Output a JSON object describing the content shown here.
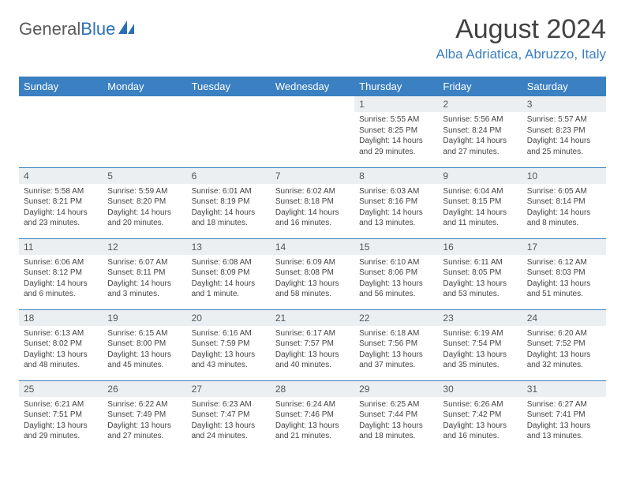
{
  "logo": {
    "text_gray": "General",
    "text_blue": "Blue"
  },
  "title": "August 2024",
  "location": "Alba Adriatica, Abruzzo, Italy",
  "colors": {
    "header_blue": "#3a80c2",
    "daynum_bg": "#eceff1",
    "text": "#444444",
    "title_text": "#424242"
  },
  "dayNames": [
    "Sunday",
    "Monday",
    "Tuesday",
    "Wednesday",
    "Thursday",
    "Friday",
    "Saturday"
  ],
  "weeks": [
    [
      {
        "empty": true
      },
      {
        "empty": true
      },
      {
        "empty": true
      },
      {
        "empty": true
      },
      {
        "num": "1",
        "sunrise": "Sunrise: 5:55 AM",
        "sunset": "Sunset: 8:25 PM",
        "daylight": "Daylight: 14 hours and 29 minutes."
      },
      {
        "num": "2",
        "sunrise": "Sunrise: 5:56 AM",
        "sunset": "Sunset: 8:24 PM",
        "daylight": "Daylight: 14 hours and 27 minutes."
      },
      {
        "num": "3",
        "sunrise": "Sunrise: 5:57 AM",
        "sunset": "Sunset: 8:23 PM",
        "daylight": "Daylight: 14 hours and 25 minutes."
      }
    ],
    [
      {
        "num": "4",
        "sunrise": "Sunrise: 5:58 AM",
        "sunset": "Sunset: 8:21 PM",
        "daylight": "Daylight: 14 hours and 23 minutes."
      },
      {
        "num": "5",
        "sunrise": "Sunrise: 5:59 AM",
        "sunset": "Sunset: 8:20 PM",
        "daylight": "Daylight: 14 hours and 20 minutes."
      },
      {
        "num": "6",
        "sunrise": "Sunrise: 6:01 AM",
        "sunset": "Sunset: 8:19 PM",
        "daylight": "Daylight: 14 hours and 18 minutes."
      },
      {
        "num": "7",
        "sunrise": "Sunrise: 6:02 AM",
        "sunset": "Sunset: 8:18 PM",
        "daylight": "Daylight: 14 hours and 16 minutes."
      },
      {
        "num": "8",
        "sunrise": "Sunrise: 6:03 AM",
        "sunset": "Sunset: 8:16 PM",
        "daylight": "Daylight: 14 hours and 13 minutes."
      },
      {
        "num": "9",
        "sunrise": "Sunrise: 6:04 AM",
        "sunset": "Sunset: 8:15 PM",
        "daylight": "Daylight: 14 hours and 11 minutes."
      },
      {
        "num": "10",
        "sunrise": "Sunrise: 6:05 AM",
        "sunset": "Sunset: 8:14 PM",
        "daylight": "Daylight: 14 hours and 8 minutes."
      }
    ],
    [
      {
        "num": "11",
        "sunrise": "Sunrise: 6:06 AM",
        "sunset": "Sunset: 8:12 PM",
        "daylight": "Daylight: 14 hours and 6 minutes."
      },
      {
        "num": "12",
        "sunrise": "Sunrise: 6:07 AM",
        "sunset": "Sunset: 8:11 PM",
        "daylight": "Daylight: 14 hours and 3 minutes."
      },
      {
        "num": "13",
        "sunrise": "Sunrise: 6:08 AM",
        "sunset": "Sunset: 8:09 PM",
        "daylight": "Daylight: 14 hours and 1 minute."
      },
      {
        "num": "14",
        "sunrise": "Sunrise: 6:09 AM",
        "sunset": "Sunset: 8:08 PM",
        "daylight": "Daylight: 13 hours and 58 minutes."
      },
      {
        "num": "15",
        "sunrise": "Sunrise: 6:10 AM",
        "sunset": "Sunset: 8:06 PM",
        "daylight": "Daylight: 13 hours and 56 minutes."
      },
      {
        "num": "16",
        "sunrise": "Sunrise: 6:11 AM",
        "sunset": "Sunset: 8:05 PM",
        "daylight": "Daylight: 13 hours and 53 minutes."
      },
      {
        "num": "17",
        "sunrise": "Sunrise: 6:12 AM",
        "sunset": "Sunset: 8:03 PM",
        "daylight": "Daylight: 13 hours and 51 minutes."
      }
    ],
    [
      {
        "num": "18",
        "sunrise": "Sunrise: 6:13 AM",
        "sunset": "Sunset: 8:02 PM",
        "daylight": "Daylight: 13 hours and 48 minutes."
      },
      {
        "num": "19",
        "sunrise": "Sunrise: 6:15 AM",
        "sunset": "Sunset: 8:00 PM",
        "daylight": "Daylight: 13 hours and 45 minutes."
      },
      {
        "num": "20",
        "sunrise": "Sunrise: 6:16 AM",
        "sunset": "Sunset: 7:59 PM",
        "daylight": "Daylight: 13 hours and 43 minutes."
      },
      {
        "num": "21",
        "sunrise": "Sunrise: 6:17 AM",
        "sunset": "Sunset: 7:57 PM",
        "daylight": "Daylight: 13 hours and 40 minutes."
      },
      {
        "num": "22",
        "sunrise": "Sunrise: 6:18 AM",
        "sunset": "Sunset: 7:56 PM",
        "daylight": "Daylight: 13 hours and 37 minutes."
      },
      {
        "num": "23",
        "sunrise": "Sunrise: 6:19 AM",
        "sunset": "Sunset: 7:54 PM",
        "daylight": "Daylight: 13 hours and 35 minutes."
      },
      {
        "num": "24",
        "sunrise": "Sunrise: 6:20 AM",
        "sunset": "Sunset: 7:52 PM",
        "daylight": "Daylight: 13 hours and 32 minutes."
      }
    ],
    [
      {
        "num": "25",
        "sunrise": "Sunrise: 6:21 AM",
        "sunset": "Sunset: 7:51 PM",
        "daylight": "Daylight: 13 hours and 29 minutes."
      },
      {
        "num": "26",
        "sunrise": "Sunrise: 6:22 AM",
        "sunset": "Sunset: 7:49 PM",
        "daylight": "Daylight: 13 hours and 27 minutes."
      },
      {
        "num": "27",
        "sunrise": "Sunrise: 6:23 AM",
        "sunset": "Sunset: 7:47 PM",
        "daylight": "Daylight: 13 hours and 24 minutes."
      },
      {
        "num": "28",
        "sunrise": "Sunrise: 6:24 AM",
        "sunset": "Sunset: 7:46 PM",
        "daylight": "Daylight: 13 hours and 21 minutes."
      },
      {
        "num": "29",
        "sunrise": "Sunrise: 6:25 AM",
        "sunset": "Sunset: 7:44 PM",
        "daylight": "Daylight: 13 hours and 18 minutes."
      },
      {
        "num": "30",
        "sunrise": "Sunrise: 6:26 AM",
        "sunset": "Sunset: 7:42 PM",
        "daylight": "Daylight: 13 hours and 16 minutes."
      },
      {
        "num": "31",
        "sunrise": "Sunrise: 6:27 AM",
        "sunset": "Sunset: 7:41 PM",
        "daylight": "Daylight: 13 hours and 13 minutes."
      }
    ]
  ]
}
